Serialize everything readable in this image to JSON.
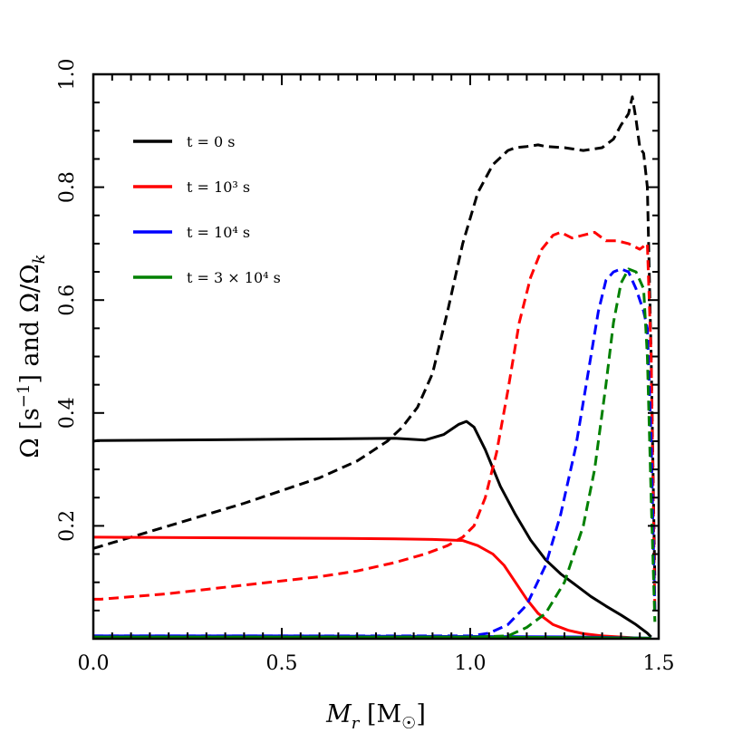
{
  "chart_data": {
    "type": "line",
    "xlabel": "M_r [M_☉]",
    "ylabel": "Ω [s⁻¹] and Ω/Ω_k",
    "xlim": [
      0.0,
      1.5
    ],
    "ylim": [
      0.0,
      1.0
    ],
    "x_ticks": [
      "0.0",
      "0.5",
      "1.0",
      "1.5"
    ],
    "y_ticks": [
      "0.2",
      "0.4",
      "0.6",
      "0.8",
      "1.0"
    ],
    "grid": false,
    "legend_position": "top-left",
    "line_style_note": "solid lines = Ω [s⁻¹]; dashed lines = Ω/Ω_k",
    "series": [
      {
        "name": "t = 0 s",
        "color": "#000000",
        "omega": {
          "x": [
            0.0,
            0.01,
            0.2,
            0.4,
            0.6,
            0.8,
            0.88,
            0.93,
            0.97,
            0.99,
            1.01,
            1.04,
            1.08,
            1.12,
            1.16,
            1.2,
            1.24,
            1.28,
            1.32,
            1.36,
            1.4,
            1.44,
            1.47,
            1.48
          ],
          "y": [
            0.35,
            0.351,
            0.352,
            0.353,
            0.354,
            0.355,
            0.352,
            0.362,
            0.38,
            0.385,
            0.375,
            0.335,
            0.27,
            0.22,
            0.175,
            0.14,
            0.115,
            0.095,
            0.075,
            0.058,
            0.042,
            0.025,
            0.01,
            0.003
          ]
        },
        "omega_ratio": {
          "x": [
            0.0,
            0.05,
            0.2,
            0.4,
            0.6,
            0.7,
            0.78,
            0.82,
            0.86,
            0.9,
            0.94,
            0.98,
            1.02,
            1.06,
            1.1,
            1.12,
            1.15,
            1.18,
            1.2,
            1.25,
            1.3,
            1.35,
            1.38,
            1.4,
            1.42,
            1.43,
            1.44,
            1.45,
            1.46,
            1.47,
            1.48,
            1.49
          ],
          "y": [
            0.16,
            0.17,
            0.2,
            0.24,
            0.285,
            0.315,
            0.35,
            0.375,
            0.41,
            0.47,
            0.58,
            0.7,
            0.79,
            0.84,
            0.865,
            0.87,
            0.872,
            0.875,
            0.872,
            0.87,
            0.865,
            0.87,
            0.885,
            0.91,
            0.93,
            0.96,
            0.92,
            0.87,
            0.86,
            0.8,
            0.5,
            0.1
          ]
        }
      },
      {
        "name": "t = 10³ s",
        "color": "#ff0000",
        "omega": {
          "x": [
            0.0,
            0.01,
            0.3,
            0.6,
            0.8,
            0.9,
            0.98,
            1.02,
            1.06,
            1.09,
            1.12,
            1.15,
            1.18,
            1.22,
            1.26,
            1.3,
            1.35,
            1.4,
            1.45,
            1.48
          ],
          "y": [
            0.18,
            0.18,
            0.179,
            0.178,
            0.177,
            0.176,
            0.174,
            0.165,
            0.15,
            0.13,
            0.1,
            0.07,
            0.045,
            0.025,
            0.015,
            0.009,
            0.005,
            0.003,
            0.001,
            0.0
          ]
        },
        "omega_ratio": {
          "x": [
            0.0,
            0.02,
            0.2,
            0.4,
            0.6,
            0.7,
            0.8,
            0.88,
            0.94,
            0.98,
            1.01,
            1.04,
            1.07,
            1.1,
            1.13,
            1.16,
            1.19,
            1.22,
            1.24,
            1.27,
            1.3,
            1.33,
            1.36,
            1.39,
            1.42,
            1.45,
            1.47,
            1.48,
            1.49
          ],
          "y": [
            0.07,
            0.07,
            0.08,
            0.095,
            0.11,
            0.12,
            0.135,
            0.15,
            0.165,
            0.18,
            0.2,
            0.25,
            0.33,
            0.44,
            0.56,
            0.64,
            0.69,
            0.715,
            0.72,
            0.71,
            0.715,
            0.72,
            0.705,
            0.705,
            0.7,
            0.69,
            0.7,
            0.5,
            0.05
          ]
        }
      },
      {
        "name": "t = 10⁴ s",
        "color": "#0000ff",
        "omega": {
          "x": [
            0.0,
            0.5,
            1.0,
            1.3,
            1.48
          ],
          "y": [
            0.005,
            0.005,
            0.004,
            0.003,
            0.001
          ]
        },
        "omega_ratio": {
          "x": [
            0.0,
            0.5,
            1.0,
            1.05,
            1.1,
            1.15,
            1.2,
            1.24,
            1.28,
            1.31,
            1.34,
            1.36,
            1.38,
            1.4,
            1.42,
            1.44,
            1.46,
            1.47,
            1.48,
            1.49
          ],
          "y": [
            0.005,
            0.005,
            0.005,
            0.01,
            0.025,
            0.06,
            0.13,
            0.22,
            0.34,
            0.46,
            0.58,
            0.635,
            0.65,
            0.655,
            0.65,
            0.62,
            0.58,
            0.55,
            0.35,
            0.05
          ]
        }
      },
      {
        "name": "t = 3 × 10⁴ s",
        "color": "#008000",
        "omega": {
          "x": [
            0.0,
            0.5,
            1.0,
            1.3,
            1.48
          ],
          "y": [
            0.003,
            0.003,
            0.003,
            0.002,
            0.001
          ]
        },
        "omega_ratio": {
          "x": [
            0.0,
            0.5,
            1.0,
            1.1,
            1.15,
            1.2,
            1.25,
            1.3,
            1.33,
            1.36,
            1.38,
            1.4,
            1.42,
            1.44,
            1.46,
            1.47,
            1.48,
            1.49
          ],
          "y": [
            0.003,
            0.003,
            0.003,
            0.005,
            0.02,
            0.045,
            0.1,
            0.2,
            0.3,
            0.45,
            0.56,
            0.63,
            0.655,
            0.65,
            0.62,
            0.5,
            0.25,
            0.03
          ]
        }
      }
    ]
  }
}
